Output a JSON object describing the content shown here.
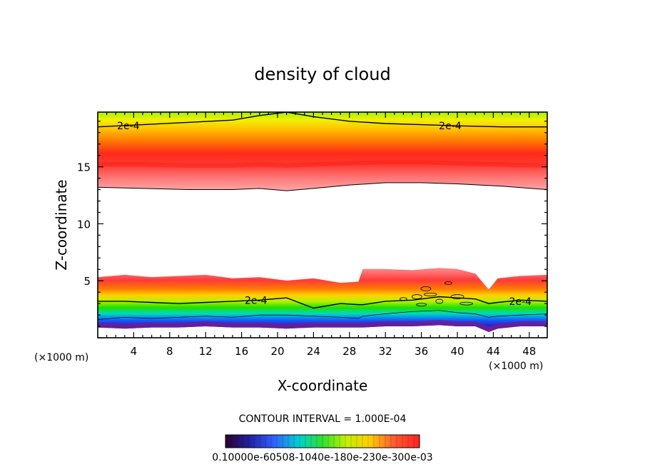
{
  "chart_data": {
    "type": "heatmap",
    "title": "density of cloud",
    "xlabel": "X-coordinate",
    "ylabel": "Z-coordinate",
    "x_unit": "(×1000 m)",
    "x_unit_right": "(×1000 m)",
    "xlim": [
      0,
      50
    ],
    "ylim": [
      0,
      19.8
    ],
    "x_ticks": [
      4,
      8,
      12,
      16,
      20,
      24,
      28,
      32,
      36,
      40,
      44,
      48
    ],
    "y_ticks": [
      5,
      10,
      15
    ],
    "contour_label": "2e-4",
    "contour_interval_text": "CONTOUR INTERVAL = 1.000E-04",
    "colorbar_labels_text": "0.10000e-60508-1040e-180e-230e-300e-03",
    "colorbar_range": [
      0.0001,
      0.0003
    ],
    "upper_layer": {
      "x": [
        0,
        5,
        10,
        15,
        18,
        21,
        24,
        28,
        32,
        36,
        40,
        45,
        50
      ],
      "bottom": [
        13.2,
        13.1,
        13.0,
        13.0,
        13.1,
        12.9,
        13.1,
        13.4,
        13.6,
        13.6,
        13.5,
        13.3,
        13.0
      ],
      "contour_2e4": [
        18.5,
        18.7,
        18.9,
        19.1,
        19.5,
        19.8,
        19.4,
        19.0,
        18.8,
        18.7,
        18.6,
        18.5,
        18.5
      ],
      "core": [
        15.2,
        15.2,
        15.1,
        15.1,
        15.2,
        15.1,
        15.2,
        15.3,
        15.4,
        15.4,
        15.3,
        15.2,
        15.1
      ]
    },
    "lower_layer": {
      "x": [
        0,
        3,
        6,
        9,
        12,
        15,
        18,
        21,
        24,
        27,
        29,
        29.5,
        32,
        35,
        38,
        40,
        42,
        43.5,
        44.5,
        47,
        50
      ],
      "top": [
        5.3,
        5.5,
        5.3,
        5.4,
        5.5,
        5.2,
        5.3,
        5.0,
        5.2,
        4.8,
        4.9,
        6.0,
        6.0,
        5.9,
        6.1,
        6.0,
        5.6,
        4.2,
        5.2,
        5.4,
        5.5
      ],
      "contour_2e4": [
        3.2,
        3.2,
        3.1,
        3.0,
        3.1,
        3.2,
        3.3,
        3.5,
        2.6,
        3.0,
        2.9,
        2.9,
        3.2,
        3.3,
        3.6,
        3.5,
        3.4,
        3.0,
        3.1,
        3.3,
        3.2
      ],
      "blue_top": [
        1.6,
        1.8,
        1.7,
        1.8,
        1.9,
        1.8,
        2.0,
        2.0,
        1.9,
        1.8,
        1.7,
        1.9,
        2.1,
        2.3,
        2.4,
        2.2,
        2.1,
        1.8,
        1.9,
        2.0,
        2.1
      ],
      "bottom": [
        0.9,
        0.8,
        0.9,
        0.9,
        1.0,
        0.9,
        0.9,
        0.8,
        0.9,
        0.9,
        0.9,
        0.9,
        1.0,
        1.0,
        1.1,
        1.0,
        1.0,
        0.5,
        0.8,
        1.0,
        1.0
      ]
    },
    "scattered_contours": [
      [
        34,
        3.4
      ],
      [
        35.5,
        3.6
      ],
      [
        37,
        3.8
      ],
      [
        38,
        3.2
      ],
      [
        36,
        2.9
      ],
      [
        40,
        3.6
      ],
      [
        39,
        4.8
      ],
      [
        36.5,
        4.3
      ],
      [
        41,
        3.0
      ]
    ]
  }
}
